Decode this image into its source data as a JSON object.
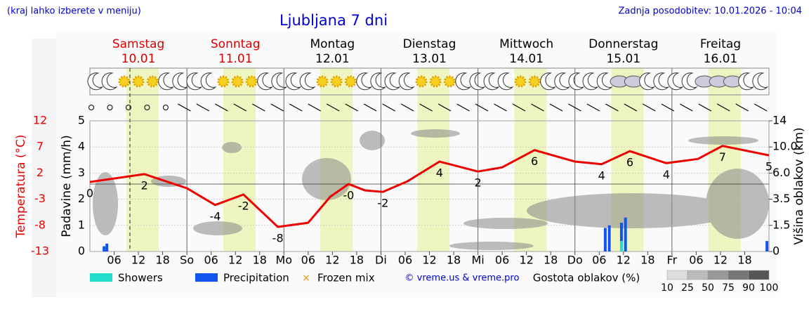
{
  "header": {
    "note": "(kraj lahko izberete v meniju)",
    "title": "Ljubljana 7 dni",
    "updated": "Zadnja posodobitev: 10.01.2026 - 10:04"
  },
  "days": [
    {
      "name": "Samstag",
      "date": "10.01",
      "color": "#dd0000"
    },
    {
      "name": "Sonntag",
      "date": "11.01",
      "color": "#dd0000"
    },
    {
      "name": "Montag",
      "date": "12.01",
      "color": "#000000"
    },
    {
      "name": "Dienstag",
      "date": "13.01",
      "color": "#000000"
    },
    {
      "name": "Mittwoch",
      "date": "14.01",
      "color": "#000000"
    },
    {
      "name": "Donnerstag",
      "date": "15.01",
      "color": "#000000"
    },
    {
      "name": "Freitag",
      "date": "16.01",
      "color": "#000000"
    }
  ],
  "chart_data": {
    "type": "line",
    "xlim": [
      0,
      168
    ],
    "xticks": [
      {
        "value": 6,
        "label": "06"
      },
      {
        "value": 12,
        "label": "12"
      },
      {
        "value": 18,
        "label": "18"
      },
      {
        "value": 24,
        "label": "So"
      },
      {
        "value": 30,
        "label": "06"
      },
      {
        "value": 36,
        "label": "12"
      },
      {
        "value": 42,
        "label": "18"
      },
      {
        "value": 48,
        "label": "Mo"
      },
      {
        "value": 54,
        "label": "06"
      },
      {
        "value": 60,
        "label": "12"
      },
      {
        "value": 66,
        "label": "18"
      },
      {
        "value": 72,
        "label": "Di"
      },
      {
        "value": 78,
        "label": "06"
      },
      {
        "value": 84,
        "label": "12"
      },
      {
        "value": 90,
        "label": "18"
      },
      {
        "value": 96,
        "label": "Mi"
      },
      {
        "value": 102,
        "label": "06"
      },
      {
        "value": 108,
        "label": "12"
      },
      {
        "value": 114,
        "label": "18"
      },
      {
        "value": 120,
        "label": "Do"
      },
      {
        "value": 126,
        "label": "06"
      },
      {
        "value": 132,
        "label": "12"
      },
      {
        "value": 138,
        "label": "18"
      },
      {
        "value": 144,
        "label": "Fr"
      },
      {
        "value": 150,
        "label": "06"
      },
      {
        "value": 156,
        "label": "12"
      },
      {
        "value": 162,
        "label": "18"
      }
    ],
    "y_label": "Padavine (mm/h)",
    "ylim": [
      0,
      5
    ],
    "yticks": [
      0,
      1,
      2,
      3,
      4,
      5
    ],
    "y2_label": "Temperatura (°C)",
    "y2lim": [
      -13,
      12
    ],
    "y2ticks": [
      12,
      7,
      2,
      -3,
      -8,
      -13
    ],
    "y2_color": "#ee0000",
    "cloud_axis": {
      "label": "Višina oblakov (km)",
      "ticks": [
        0,
        1.5,
        3.5,
        {
          "value": 6,
          "label": "6.0"
        },
        {
          "value": 10,
          "label": "10.0"
        },
        14
      ]
    },
    "series": [
      {
        "axis": "y2",
        "color": "#ee0000",
        "x": [
          0,
          13.5,
          24,
          31,
          38,
          46.5,
          54,
          59.5,
          64,
          68,
          72.5,
          78.5,
          86.5,
          96,
          102,
          110,
          120,
          126.6,
          133.6,
          142.6,
          150.4,
          156.5,
          168
        ],
        "values": [
          0.3,
          1.8,
          -0.9,
          -4.1,
          -2.1,
          -8.3,
          -7.5,
          -2.5,
          -0.1,
          -1.3,
          -1.6,
          0.4,
          4.2,
          2.3,
          3.1,
          6.4,
          4.2,
          3.7,
          6.2,
          3.9,
          4.7,
          7.2,
          5.4
        ],
        "value_labels": [
          "0",
          "2",
          null,
          "-4",
          "-2",
          "-8",
          null,
          null,
          "-0",
          null,
          "-2",
          null,
          "4",
          "2",
          null,
          "6",
          null,
          "4",
          "6",
          "4",
          null,
          "7",
          "5"
        ]
      },
      {
        "name": "Showers",
        "color": "#22ddcc",
        "x": [
          131.5
        ],
        "values": [
          0.4
        ]
      },
      {
        "name": "Precipitation",
        "color": "#1155ee",
        "x": [
          3.5,
          4.2,
          127.5,
          128.5,
          131.5,
          132.5,
          167.5
        ],
        "values": [
          0.2,
          0.3,
          0.9,
          1.0,
          0.7,
          1.3,
          0.4
        ],
        "stack_on": "Showers"
      },
      {
        "name": "Frozen mix",
        "color": "#ee9900",
        "x": [],
        "values": []
      }
    ],
    "copyright": "© vreme.us & vreme.pro",
    "density_legend": {
      "title": "Gostota oblakov (%)",
      "levels": [
        10,
        25,
        50,
        75,
        90,
        100
      ],
      "colors": [
        "#dddddd",
        "#bbbbbb",
        "#999999",
        "#777777",
        "#555555"
      ]
    }
  }
}
